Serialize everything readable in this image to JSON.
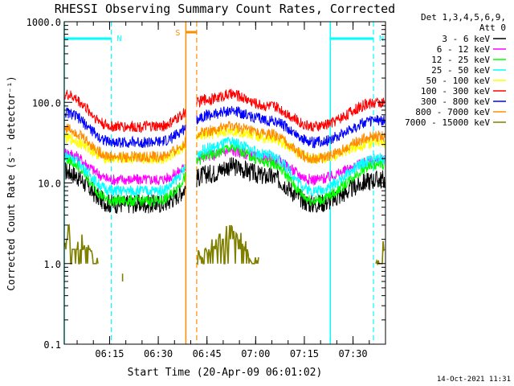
{
  "chart_data": {
    "type": "line",
    "title": "RHESSI Observing Summary Count Rates, Corrected",
    "xlabel": "Start Time (20-Apr-09 06:01:02)",
    "ylabel": "Corrected Count Rate (s⁻¹ detector⁻¹)",
    "yscale": "log",
    "ylim": [
      0.1,
      1000
    ],
    "xlim": [
      "06:01:02",
      "07:40:00"
    ],
    "x_ticks": [
      "06:15",
      "06:30",
      "06:45",
      "07:00",
      "07:15",
      "07:30"
    ],
    "y_ticks": [
      "0.1",
      "1.0",
      "10.0",
      "100.0",
      "1000.0"
    ],
    "grid": false,
    "legend_header": [
      "Det 1,3,4,5,6,9,",
      "Att 0"
    ],
    "legend_position": "right",
    "series": [
      {
        "name": "3 - 6 keV",
        "color": "#000000",
        "x": [
          "06:01",
          "06:16",
          "06:30",
          "06:46",
          "06:52",
          "07:04",
          "07:18",
          "07:38"
        ],
        "y": [
          14,
          5.5,
          5.5,
          13,
          16,
          12,
          5.5,
          11
        ]
      },
      {
        "name": "6 - 12 keV",
        "color": "#ff00ff",
        "x": [
          "06:01",
          "06:16",
          "06:30",
          "06:46",
          "06:52",
          "07:04",
          "07:18",
          "07:38"
        ],
        "y": [
          24,
          11,
          11,
          22,
          25,
          20,
          11,
          19
        ]
      },
      {
        "name": "12 - 25 keV",
        "color": "#00ff00",
        "x": [
          "06:01",
          "06:16",
          "06:30",
          "06:46",
          "06:52",
          "07:04",
          "07:18",
          "07:38"
        ],
        "y": [
          20,
          6,
          6,
          22,
          27,
          18,
          6,
          17
        ]
      },
      {
        "name": "25 - 50 keV",
        "color": "#00ffff",
        "x": [
          "06:01",
          "06:16",
          "06:30",
          "06:46",
          "06:52",
          "07:04",
          "07:18",
          "07:38"
        ],
        "y": [
          22,
          8,
          8,
          27,
          32,
          22,
          8,
          20
        ]
      },
      {
        "name": "50 - 100 keV",
        "color": "#ffff00",
        "x": [
          "06:01",
          "06:16",
          "06:30",
          "06:46",
          "06:52",
          "07:04",
          "07:18",
          "07:38"
        ],
        "y": [
          36,
          20,
          20,
          40,
          45,
          36,
          20,
          32
        ]
      },
      {
        "name": "100 - 300 keV",
        "color": "#ff0000",
        "x": [
          "06:01",
          "06:16",
          "06:30",
          "06:46",
          "06:52",
          "07:04",
          "07:18",
          "07:38"
        ],
        "y": [
          125,
          50,
          50,
          110,
          125,
          90,
          50,
          100
        ]
      },
      {
        "name": "300 - 800 keV",
        "color": "#0000ff",
        "x": [
          "06:01",
          "06:16",
          "06:30",
          "06:46",
          "06:52",
          "07:04",
          "07:18",
          "07:38"
        ],
        "y": [
          75,
          32,
          32,
          70,
          78,
          60,
          32,
          60
        ]
      },
      {
        "name": "800 - 7000 keV",
        "color": "#ff8c00",
        "x": [
          "06:01",
          "06:16",
          "06:30",
          "06:46",
          "06:52",
          "07:04",
          "07:18",
          "07:38"
        ],
        "y": [
          48,
          21,
          21,
          45,
          50,
          40,
          20,
          38
        ]
      },
      {
        "name": "7000 - 15000 keV",
        "color": "#808000",
        "x": [
          "06:01",
          "06:03",
          "06:06",
          "06:08",
          "06:11",
          "06:40",
          "06:44",
          "06:48",
          "06:52",
          "06:56",
          "06:59",
          "07:38",
          "07:40"
        ],
        "y": [
          2,
          3,
          2,
          1.5,
          1,
          1,
          1.5,
          2,
          3,
          2,
          1,
          1,
          2
        ]
      }
    ],
    "annotations": {
      "night_label": "N",
      "saa_label": "S",
      "night_intervals": [
        [
          "06:01:02",
          "06:15:30"
        ],
        [
          "07:23:00",
          "07:40:00"
        ]
      ],
      "saa_interval": [
        "06:38:30",
        "06:41:50"
      ],
      "night_color": "#00ffff",
      "saa_color": "#ff8c00"
    }
  },
  "footer": {
    "timestamp": "14-Oct-2021 11:31"
  }
}
